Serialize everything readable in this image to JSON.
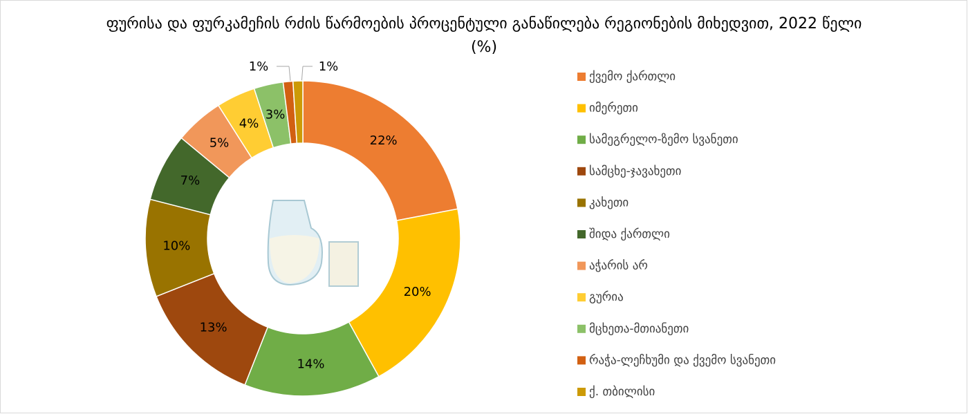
{
  "chart_data": {
    "type": "donut",
    "title": "ფურისა და ფურკამეჩის რძის წარმოების პროცენტული განაწილება რეგიონების მიხედვით, 2022 წელი (%)",
    "categories": [
      "ქვემო ქართლი",
      "იმერეთი",
      "სამეგრელო-ზემო სვანეთი",
      "სამცხე-ჯავახეთი",
      "კახეთი",
      "შიდა ქართლი",
      "აჭარის არ",
      "გურია",
      "მცხეთა-მთიანეთი",
      "რაჭა-ლეჩხუმი და ქვემო სვანეთი",
      "ქ. თბილისი"
    ],
    "values": [
      22,
      20,
      14,
      13,
      10,
      7,
      5,
      4,
      3,
      1,
      1
    ],
    "value_labels": [
      "22%",
      "20%",
      "14%",
      "13%",
      "10%",
      "7%",
      "5%",
      "4%",
      "3%",
      "1%",
      "1%"
    ],
    "colors": [
      "#ED7D31",
      "#FFC000",
      "#70AD47",
      "#9E480E",
      "#997300",
      "#43682B",
      "#F1975A",
      "#FFCD33",
      "#8CC168",
      "#D26012",
      "#CC9A06"
    ],
    "legend": "right"
  }
}
